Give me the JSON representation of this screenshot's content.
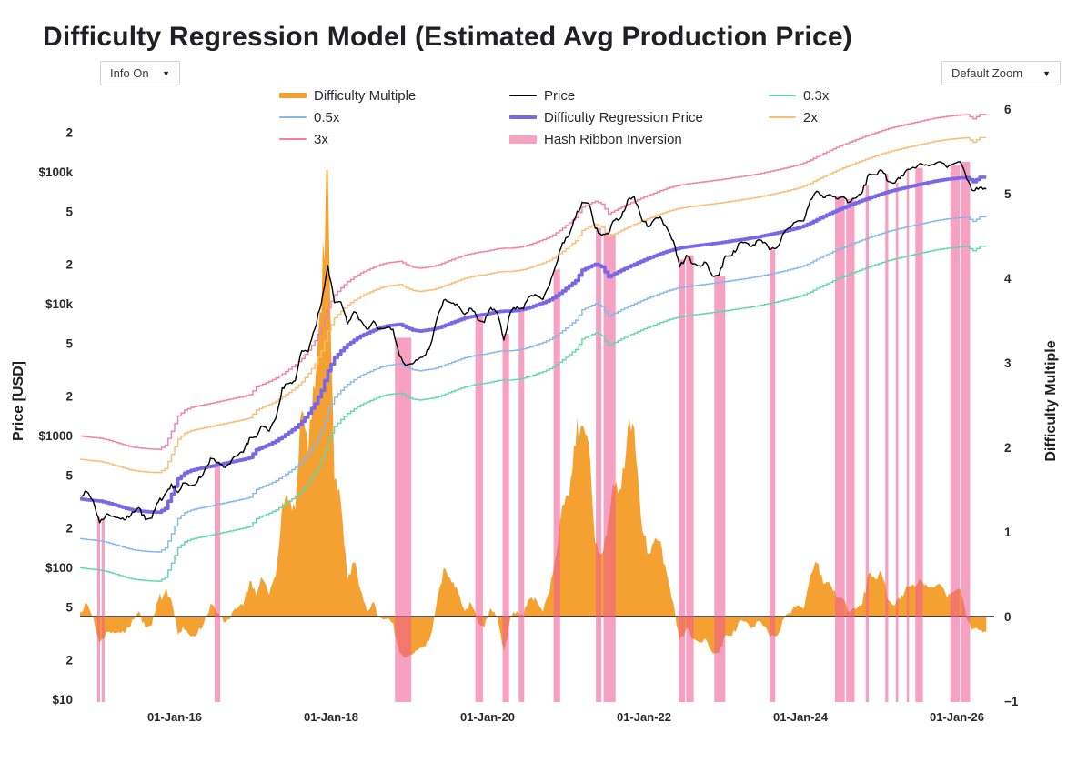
{
  "title": "Difficulty Regression Model (Estimated Avg Production Price)",
  "controls": {
    "info_label": "Info On",
    "zoom_label": "Default Zoom",
    "arrow": "▼"
  },
  "legend": {
    "items": [
      {
        "label": "Difficulty Multiple",
        "color": "#F5A132",
        "swatch": "thick"
      },
      {
        "label": "0.5x",
        "color": "#85B7E8",
        "swatch": "line"
      },
      {
        "label": "3x",
        "color": "#F27FA6",
        "swatch": "line"
      },
      {
        "label": "Price",
        "color": "#000000",
        "swatch": "line"
      },
      {
        "label": "Difficulty Regression Price",
        "color": "#7A67E8",
        "swatch": "thickline"
      },
      {
        "label": "Hash Ribbon Inversion",
        "color": "#F6A3C0",
        "swatch": "bar"
      },
      {
        "label": "0.3x",
        "color": "#63D6AE",
        "swatch": "line"
      },
      {
        "label": "2x",
        "color": "#F9BD73",
        "swatch": "line"
      }
    ],
    "columns": [
      [
        0,
        1,
        2
      ],
      [
        3,
        4,
        5
      ],
      [
        6,
        7
      ]
    ]
  },
  "axes": {
    "y_left": {
      "title": "Price [USD]",
      "ticks": [
        {
          "v": 10,
          "t": "$10"
        },
        {
          "v": 20,
          "t": "2"
        },
        {
          "v": 50,
          "t": "5"
        },
        {
          "v": 100,
          "t": "$100"
        },
        {
          "v": 200,
          "t": "2"
        },
        {
          "v": 500,
          "t": "5"
        },
        {
          "v": 1000,
          "t": "$1000"
        },
        {
          "v": 2000,
          "t": "2"
        },
        {
          "v": 5000,
          "t": "5"
        },
        {
          "v": 10000,
          "t": "$10k"
        },
        {
          "v": 20000,
          "t": "2"
        },
        {
          "v": 50000,
          "t": "5"
        },
        {
          "v": 100000,
          "t": "$100k"
        },
        {
          "v": 200000,
          "t": "2"
        }
      ]
    },
    "y_right": {
      "title": "Difficulty Multiple",
      "ticks": [
        {
          "v": -1,
          "t": "−1"
        },
        {
          "v": 0,
          "t": "0"
        },
        {
          "v": 1,
          "t": "1"
        },
        {
          "v": 2,
          "t": "2"
        },
        {
          "v": 3,
          "t": "3"
        },
        {
          "v": 4,
          "t": "4"
        },
        {
          "v": 5,
          "t": "5"
        },
        {
          "v": 6,
          "t": "6"
        }
      ]
    },
    "x": {
      "ticks": [
        {
          "label": "01-Jan-16",
          "year": 2016
        },
        {
          "label": "01-Jan-18",
          "year": 2018
        },
        {
          "label": "01-Jan-20",
          "year": 2020
        },
        {
          "label": "01-Jan-22",
          "year": 2022
        },
        {
          "label": "01-Jan-24",
          "year": 2024
        },
        {
          "label": "01-Jan-26",
          "year": 2026
        }
      ]
    }
  },
  "chart_data": {
    "type": "line",
    "title": "Difficulty Regression Model (Estimated Avg Production Price)",
    "x_start_month": "2014-10",
    "x_interval": "monthly",
    "x_range": [
      "2014-10-15",
      "2026-05-15"
    ],
    "y_left_log_range": [
      9.5,
      350000
    ],
    "y_right_range": [
      -1.01,
      6.11
    ],
    "grid": false,
    "price": [
      350,
      375,
      320,
      218,
      254,
      245,
      236,
      230,
      263,
      284,
      230,
      236,
      314,
      360,
      430,
      370,
      437,
      416,
      448,
      531,
      673,
      624,
      575,
      609,
      700,
      745,
      963,
      970,
      1180,
      1080,
      1350,
      2300,
      2480,
      2600,
      4400,
      4340,
      6450,
      10100,
      19500,
      10200,
      10300,
      7000,
      8700,
      7500,
      6400,
      7400,
      6500,
      6600,
      6400,
      4000,
      3400,
      3500,
      3850,
      4100,
      5320,
      8560,
      10800,
      10100,
      9600,
      8300,
      9200,
      7550,
      7200,
      9350,
      8600,
      5300,
      8620,
      9450,
      9140,
      11350,
      11650,
      10780,
      13800,
      19700,
      29000,
      33100,
      45200,
      58800,
      58000,
      37300,
      33000,
      34000,
      43000,
      45000,
      61300,
      64500,
      46200,
      38500,
      43200,
      45500,
      37650,
      30000,
      19000,
      23300,
      20050,
      19400,
      20500,
      16200,
      16550,
      23100,
      23150,
      28500,
      29250,
      27200,
      30480,
      29230,
      25930,
      26970,
      34670,
      37720,
      42280,
      42580,
      61200,
      71300,
      63800,
      67540,
      62670,
      64620,
      58970,
      63330,
      70220,
      96450,
      95000,
      102400,
      84380,
      82550,
      94210,
      104600,
      107140,
      115760,
      112000,
      114060,
      119000,
      108000,
      115000,
      119000,
      88000,
      72000,
      76000,
      74000
    ],
    "difficulty_regression_price": [
      330,
      325,
      322,
      318,
      310,
      300,
      290,
      280,
      272,
      268,
      265,
      263,
      262,
      280,
      360,
      470,
      520,
      545,
      560,
      572,
      585,
      600,
      615,
      630,
      645,
      660,
      680,
      780,
      820,
      860,
      910,
      980,
      1060,
      1150,
      1280,
      1480,
      1750,
      2200,
      3100,
      3900,
      4400,
      4900,
      5300,
      5700,
      6000,
      6300,
      6600,
      6800,
      6900,
      7000,
      6600,
      6300,
      6200,
      6300,
      6400,
      6600,
      6900,
      7200,
      7500,
      7800,
      8000,
      8200,
      8300,
      8500,
      8700,
      8800,
      8800,
      8900,
      9100,
      9400,
      9800,
      10200,
      10700,
      11500,
      12500,
      13700,
      15000,
      18000,
      19000,
      20000,
      19000,
      16000,
      17000,
      18000,
      19000,
      20000,
      21000,
      22000,
      23000,
      24000,
      25000,
      25800,
      26500,
      27000,
      27400,
      27800,
      28200,
      28600,
      29000,
      29500,
      30000,
      30500,
      31000,
      31600,
      32200,
      33000,
      33800,
      34600,
      35500,
      36500,
      37500,
      39000,
      41000,
      43500,
      46000,
      48500,
      51000,
      53500,
      56000,
      58500,
      61000,
      63500,
      66000,
      68500,
      71000,
      73000,
      75000,
      77000,
      79000,
      81000,
      83000,
      85000,
      86500,
      88000,
      89000,
      90000,
      90500,
      84000,
      91000,
      91000
    ],
    "band_multipliers": [
      0.3,
      0.5,
      2,
      3
    ],
    "difficulty_multiple_formula": "price / difficulty_regression_price - 1",
    "hash_ribbon_inversions": [
      [
        "2015-01-05",
        "2015-01-18"
      ],
      [
        "2015-01-25",
        "2015-02-08"
      ],
      [
        "2016-07-05",
        "2016-08-01"
      ],
      [
        "2018-10-25",
        "2019-01-10"
      ],
      [
        "2019-11-05",
        "2019-12-10"
      ],
      [
        "2020-03-10",
        "2020-04-10"
      ],
      [
        "2020-05-25",
        "2020-06-20"
      ],
      [
        "2020-11-05",
        "2020-12-05"
      ],
      [
        "2021-05-20",
        "2021-06-15"
      ],
      [
        "2021-06-25",
        "2021-08-20"
      ],
      [
        "2022-06-10",
        "2022-07-10"
      ],
      [
        "2022-07-15",
        "2022-08-20"
      ],
      [
        "2022-11-25",
        "2023-01-15"
      ],
      [
        "2023-08-10",
        "2023-09-05"
      ],
      [
        "2024-06-10",
        "2024-07-25"
      ],
      [
        "2024-08-01",
        "2024-09-10"
      ],
      [
        "2024-11-01",
        "2024-11-15"
      ],
      [
        "2025-02-01",
        "2025-02-15"
      ],
      [
        "2025-03-20",
        "2025-04-01"
      ],
      [
        "2025-05-10",
        "2025-05-20"
      ],
      [
        "2025-06-20",
        "2025-07-25"
      ],
      [
        "2025-12-01",
        "2026-01-15"
      ],
      [
        "2026-01-20",
        "2026-03-01"
      ]
    ],
    "colors": {
      "price": "#000000",
      "difficulty_regression_price": "#7A67E8",
      "difficulty_multiple": "#F5A132",
      "band_0_3x": "#63D6AE",
      "band_0_5x": "#85B7E8",
      "band_2x": "#F9BD73",
      "band_3x": "#F27FA6",
      "hash_ribbon_inversion": "#F05C96",
      "zero_line": "#1e1e1e"
    }
  }
}
